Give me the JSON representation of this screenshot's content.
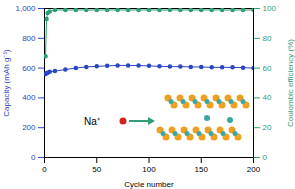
{
  "chart_data": {
    "type": "line",
    "x_label": "Cycle number",
    "y_label": "Capacity (mAh g⁻¹)",
    "y2_label": "Coulombic efficiency (%)",
    "x": [
      1,
      2,
      3,
      5,
      10,
      20,
      30,
      40,
      50,
      60,
      70,
      80,
      90,
      100,
      110,
      120,
      130,
      140,
      150,
      160,
      170,
      180,
      190,
      200
    ],
    "series": [
      {
        "color": "#2a45c4",
        "marker": "circle",
        "values": [
          560,
          565,
          568,
          575,
          580,
          590,
          600,
          608,
          612,
          615,
          618,
          618,
          617,
          615,
          612,
          610,
          610,
          608,
          607,
          605,
          605,
          605,
          603,
          600
        ]
      },
      {
        "color": "#2e9e78",
        "marker": "circle",
        "axis": "y2",
        "values": [
          68,
          93,
          97,
          98,
          99,
          99,
          99,
          99,
          99,
          99,
          99,
          99,
          99,
          99,
          99,
          99,
          99,
          99,
          99,
          99,
          99,
          99,
          99,
          99
        ]
      }
    ],
    "xlim": [
      0,
      200
    ],
    "xticks": [
      0,
      50,
      100,
      150,
      200
    ],
    "ylim": [
      0,
      1000
    ],
    "yticks": [
      0,
      200,
      400,
      600,
      800,
      1000
    ],
    "y2lim": [
      0,
      100
    ],
    "y2ticks": [
      0,
      20,
      40,
      60,
      80,
      100
    ],
    "annotations": [
      "Na⁺"
    ]
  }
}
